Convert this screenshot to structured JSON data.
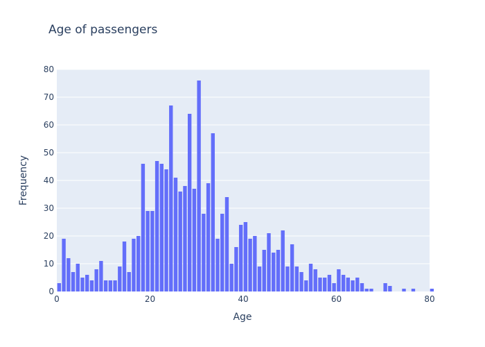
{
  "chart_data": {
    "type": "bar",
    "title": "Age of passengers",
    "xlabel": "Age",
    "ylabel": "Frequency",
    "xlim": [
      0,
      80
    ],
    "ylim": [
      0,
      80
    ],
    "x_ticks": [
      0,
      20,
      40,
      60,
      80
    ],
    "y_ticks": [
      0,
      10,
      20,
      30,
      40,
      50,
      60,
      70,
      80
    ],
    "bin_width": 1,
    "grid": true,
    "colors": {
      "bar": "#636efa",
      "plot_bg": "#e5ecf6",
      "grid": "#ffffff",
      "text": "#2a3f5f"
    },
    "x": [
      0,
      1,
      2,
      3,
      4,
      5,
      6,
      7,
      8,
      9,
      10,
      11,
      12,
      13,
      14,
      15,
      16,
      17,
      18,
      19,
      20,
      21,
      22,
      23,
      24,
      25,
      26,
      27,
      28,
      29,
      30,
      31,
      32,
      33,
      34,
      35,
      36,
      37,
      38,
      39,
      40,
      41,
      42,
      43,
      44,
      45,
      46,
      47,
      48,
      49,
      50,
      51,
      52,
      53,
      54,
      55,
      56,
      57,
      58,
      59,
      60,
      61,
      62,
      63,
      64,
      65,
      66,
      67,
      68,
      69,
      70,
      71,
      72,
      73,
      74,
      75,
      76,
      77,
      78,
      79,
      80
    ],
    "values": [
      3,
      19,
      12,
      7,
      10,
      5,
      6,
      4,
      8,
      11,
      4,
      4,
      4,
      9,
      18,
      7,
      19,
      20,
      46,
      29,
      29,
      47,
      46,
      44,
      67,
      41,
      36,
      38,
      64,
      37,
      76,
      28,
      39,
      57,
      19,
      28,
      34,
      10,
      16,
      24,
      25,
      19,
      20,
      9,
      15,
      21,
      14,
      15,
      22,
      9,
      17,
      9,
      7,
      4,
      10,
      8,
      5,
      5,
      6,
      3,
      8,
      6,
      5,
      4,
      5,
      3,
      1,
      1,
      0,
      0,
      3,
      2,
      0,
      0,
      1,
      0,
      1,
      0,
      0,
      0,
      1
    ]
  }
}
